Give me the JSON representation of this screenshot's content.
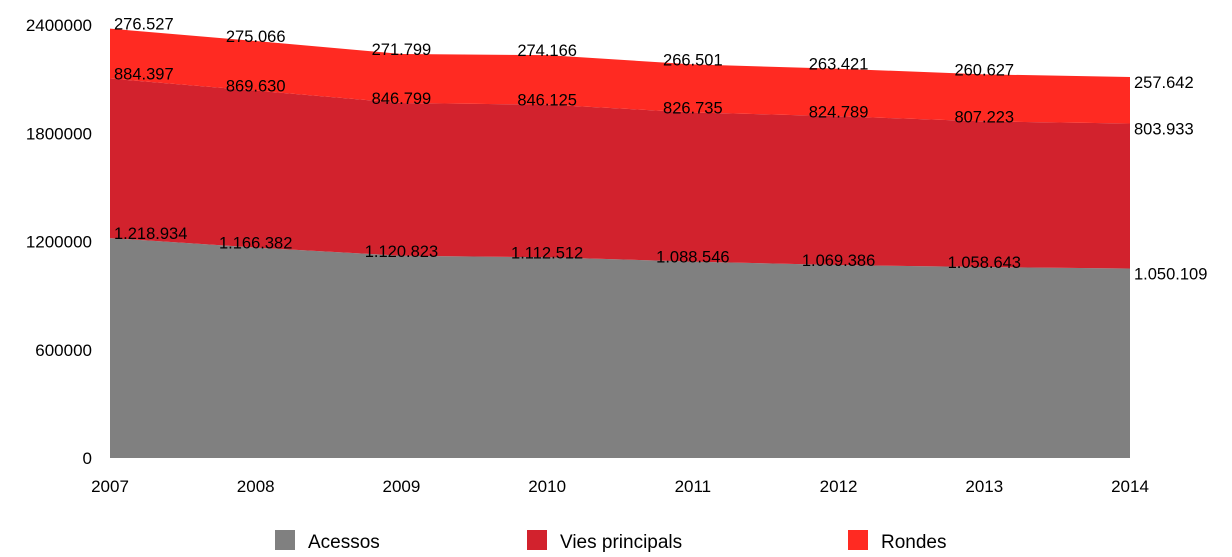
{
  "chart_data": {
    "type": "area",
    "stacked": true,
    "title": "",
    "xlabel": "",
    "ylabel": "",
    "x": [
      "2007",
      "2008",
      "2009",
      "2010",
      "2011",
      "2012",
      "2013",
      "2014"
    ],
    "ylim": [
      0,
      2400000
    ],
    "yticks": [
      0,
      600000,
      1200000,
      1800000,
      2400000
    ],
    "ytick_labels": [
      "0",
      "600000",
      "1200000",
      "1800000",
      "2400000"
    ],
    "grid": false,
    "legend_position": "bottom",
    "series": [
      {
        "name": "Acessos",
        "color": "#808080",
        "values": [
          1218934,
          1166382,
          1120823,
          1112512,
          1088546,
          1069386,
          1058643,
          1050109
        ],
        "labels": [
          "1.218.934",
          "1.166.382",
          "1.120.823",
          "1.112.512",
          "1.088.546",
          "1.069.386",
          "1.058.643",
          "1.050.109"
        ]
      },
      {
        "name": "Vies principals",
        "color": "#d2222d",
        "values": [
          884397,
          869630,
          846799,
          846125,
          826735,
          824789,
          807223,
          803933
        ],
        "labels": [
          "884.397",
          "869.630",
          "846.799",
          "846.125",
          "826.735",
          "824.789",
          "807.223",
          "803.933"
        ]
      },
      {
        "name": "Rondes",
        "color": "#ff2a22",
        "values": [
          276527,
          275066,
          271799,
          274166,
          266501,
          263421,
          260627,
          257642
        ],
        "labels": [
          "276.527",
          "275.066",
          "271.799",
          "274.166",
          "266.501",
          "263.421",
          "260.627",
          "257.642"
        ]
      }
    ]
  }
}
